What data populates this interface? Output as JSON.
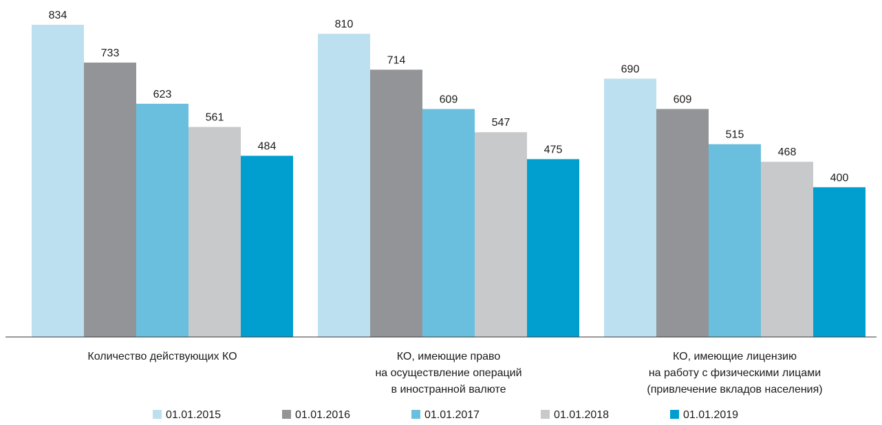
{
  "chart_data": {
    "type": "bar",
    "categories": [
      [
        "Количество действующих КО"
      ],
      [
        "КО, имеющие право",
        "на осуществление операций",
        "в иностранной валюте"
      ],
      [
        "КО, имеющие лицензию",
        "на работу с физическими лицами",
        "(привлечение вкладов населения)"
      ]
    ],
    "series": [
      {
        "name": "01.01.2015",
        "color": "#bde0f0",
        "values": [
          834,
          810,
          690
        ]
      },
      {
        "name": "01.01.2016",
        "color": "#929497",
        "values": [
          733,
          714,
          609
        ]
      },
      {
        "name": "01.01.2017",
        "color": "#6bbfde",
        "values": [
          623,
          609,
          515
        ]
      },
      {
        "name": "01.01.2018",
        "color": "#c8c9cb",
        "values": [
          561,
          547,
          468
        ]
      },
      {
        "name": "01.01.2019",
        "color": "#009fcf",
        "values": [
          484,
          475,
          400
        ]
      }
    ],
    "ylim": [
      0,
      900
    ],
    "grid": false,
    "legend_position": "bottom",
    "data_labels": true
  }
}
